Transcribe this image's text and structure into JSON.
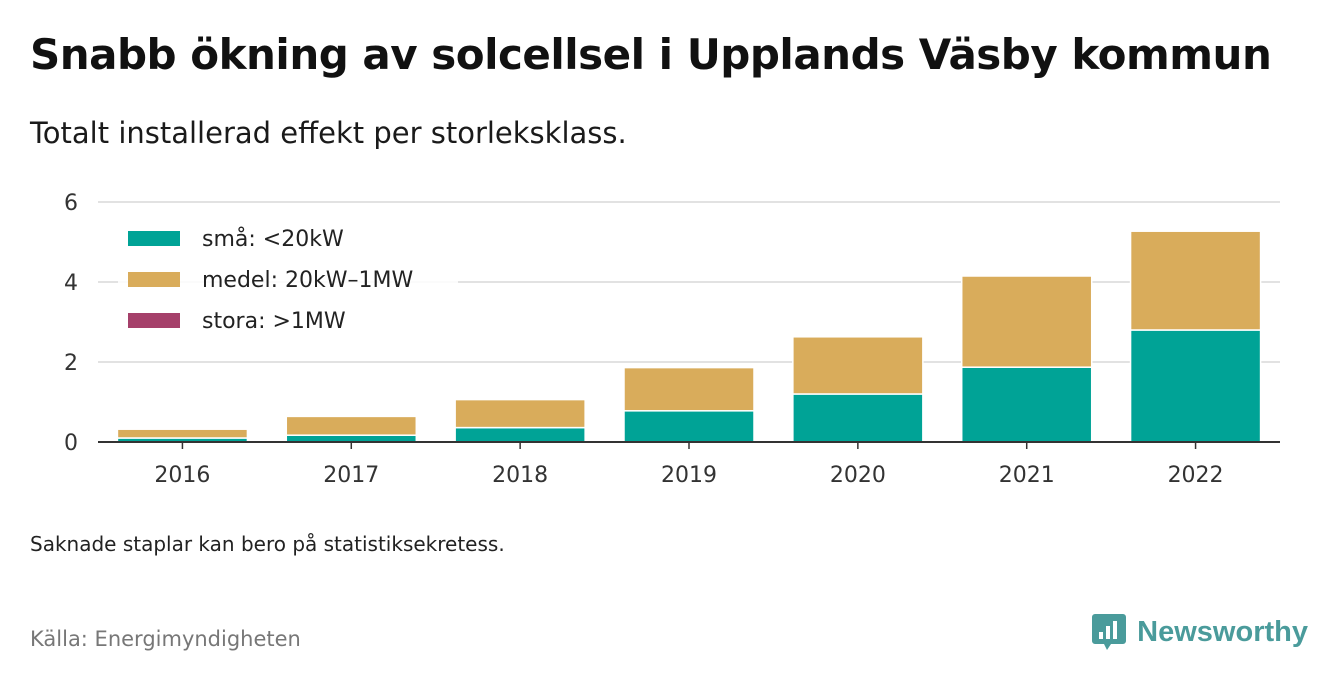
{
  "title": "Snabb ökning av solcellsel i Upplands Väsby kommun",
  "subtitle": "Totalt installerad effekt per storleksklass.",
  "note": "Saknade staplar kan bero på statistiksekretess.",
  "source": "Källa: Energimyndigheten",
  "brand": {
    "name": "Newsworthy",
    "icon": "newsworthy-logo-icon",
    "color": "#4a9b9b"
  },
  "chart_data": {
    "type": "bar",
    "stacked": true,
    "categories": [
      "2016",
      "2017",
      "2018",
      "2019",
      "2020",
      "2021",
      "2022"
    ],
    "series": [
      {
        "name": "små: <20kW",
        "color": "#00a396",
        "values": [
          0.1,
          0.17,
          0.36,
          0.78,
          1.2,
          1.87,
          2.8
        ]
      },
      {
        "name": "medel: 20kW–1MW",
        "color": "#d9ac5b",
        "values": [
          0.22,
          0.47,
          0.7,
          1.08,
          1.43,
          2.28,
          2.47
        ]
      },
      {
        "name": "stora: >1MW",
        "color": "#a5406a",
        "values": [
          0,
          0,
          0,
          0,
          0,
          0,
          0
        ]
      }
    ],
    "ylim": [
      0,
      6
    ],
    "yticks": [
      "0",
      "2",
      "4",
      "6"
    ],
    "grid": true,
    "legend": "top-left",
    "xlabel": "",
    "ylabel": ""
  }
}
